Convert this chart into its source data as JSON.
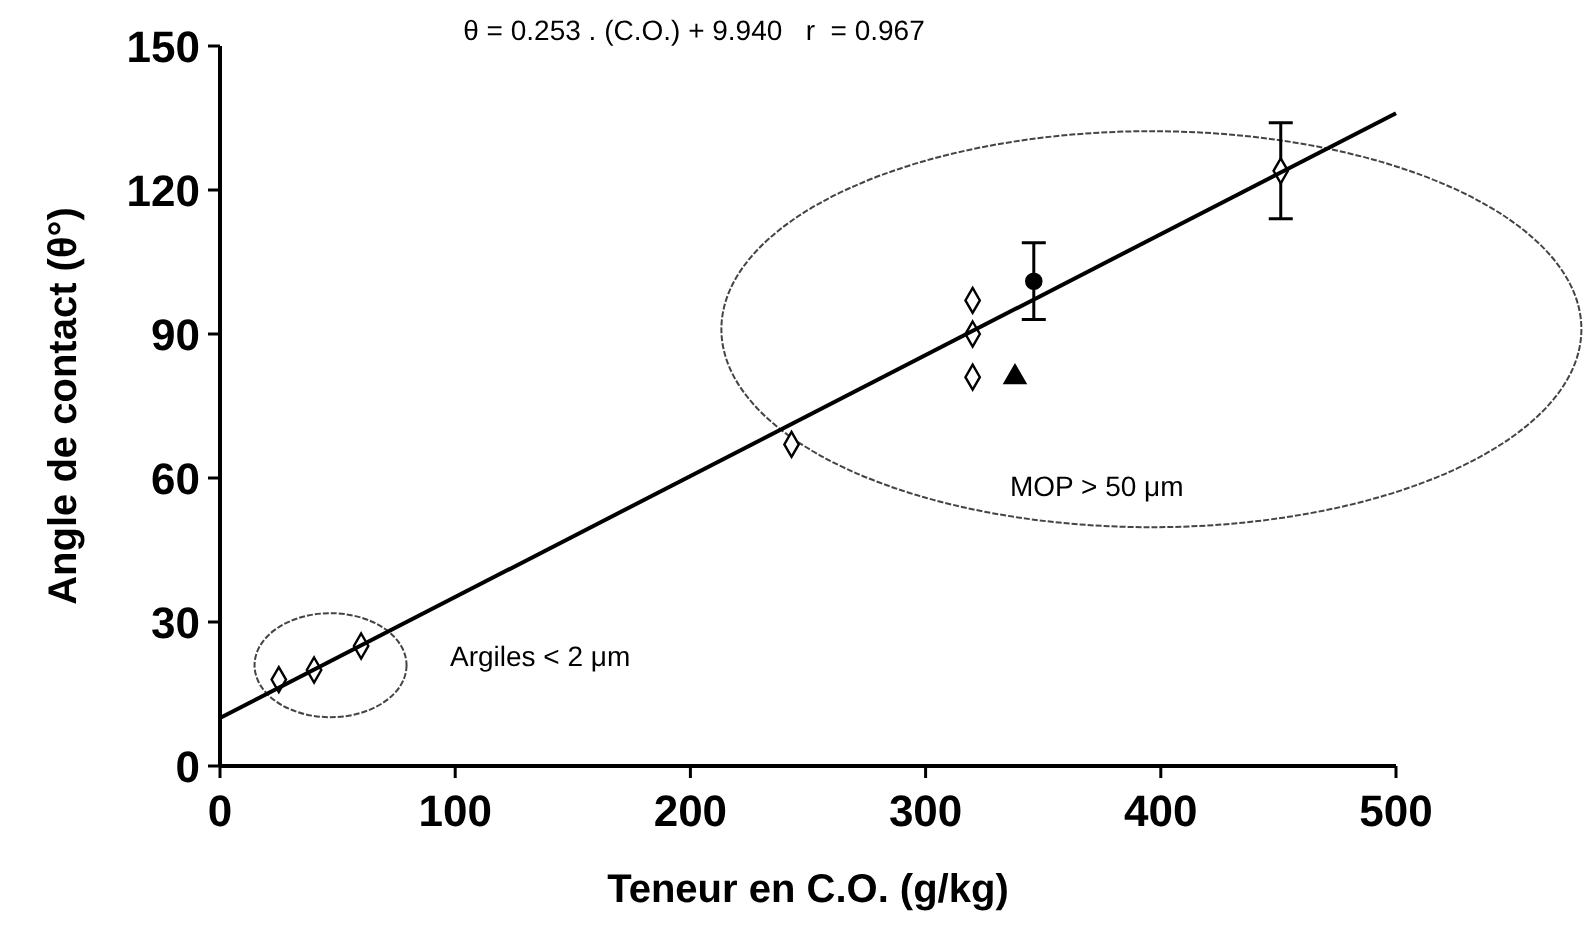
{
  "chart_data": {
    "type": "scatter",
    "xlabel": "Teneur en C.O. (g/kg)",
    "ylabel": "Angle de contact (θ°)",
    "annotations": [
      "θ = 0.253 . (C.O.) + 9.940   r  = 0.967",
      "Argiles < 2 μm",
      "MOP > 50 μm"
    ],
    "xlim": [
      0,
      500
    ],
    "xticks": [
      0,
      100,
      200,
      300,
      400,
      500
    ],
    "ylim": [
      0,
      150
    ],
    "yticks": [
      0,
      30,
      60,
      90,
      120,
      150
    ],
    "grid": false,
    "series": [
      {
        "marker": "diamond",
        "color": "#000000",
        "x": [
          25,
          40,
          60,
          243,
          320,
          320,
          320,
          451
        ],
        "values": [
          18,
          20,
          25,
          67,
          97,
          90,
          81,
          124
        ],
        "errors": [
          null,
          null,
          null,
          null,
          null,
          null,
          null,
          10
        ]
      },
      {
        "marker": "circle",
        "color": "#000000",
        "x": [
          346
        ],
        "values": [
          101
        ],
        "errors": [
          8
        ]
      },
      {
        "marker": "triangle",
        "color": "#000000",
        "x": [
          338
        ],
        "values": [
          81
        ]
      },
      {
        "type": "line",
        "color": "#000000",
        "x": [
          0,
          500
        ],
        "values": [
          10,
          136
        ]
      }
    ]
  }
}
